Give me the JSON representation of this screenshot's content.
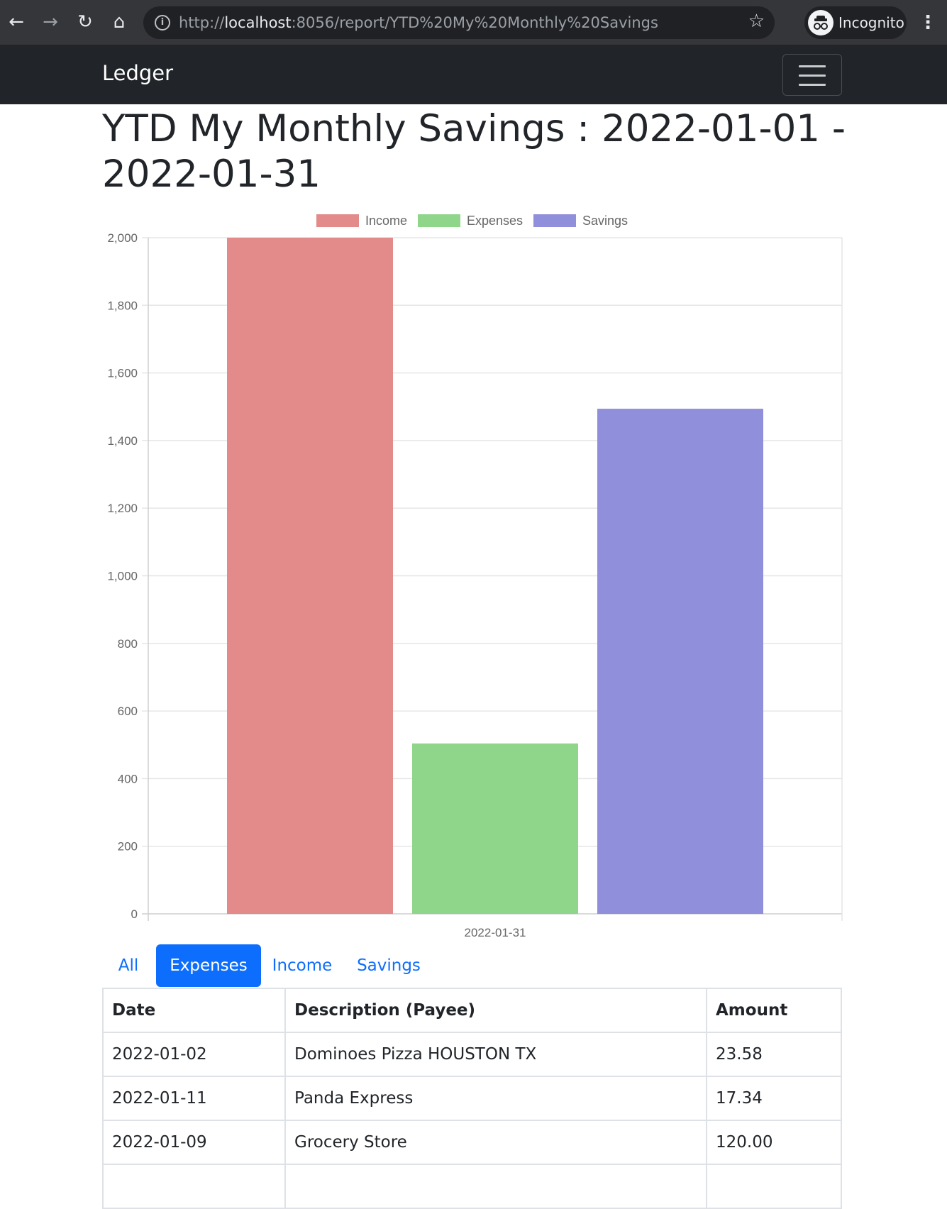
{
  "browser": {
    "url_prefix": "http://",
    "url_host": "localhost",
    "url_rest": ":8056/report/YTD%20My%20Monthly%20Savings",
    "incognito_label": "Incognito"
  },
  "navbar": {
    "brand": "Ledger"
  },
  "page": {
    "title": "YTD My Monthly Savings : 2022-01-01 - 2022-01-31"
  },
  "chart_data": {
    "type": "bar",
    "categories": [
      "2022-01-31"
    ],
    "series": [
      {
        "name": "Income",
        "values": [
          2000
        ],
        "color": "#e38a8a"
      },
      {
        "name": "Expenses",
        "values": [
          504
        ],
        "color": "#8fd68b"
      },
      {
        "name": "Savings",
        "values": [
          1494
        ],
        "color": "#8f8fdb"
      }
    ],
    "ylim": [
      0,
      2000
    ],
    "yticks": [
      "0",
      "200",
      "400",
      "600",
      "800",
      "1,000",
      "1,200",
      "1,400",
      "1,600",
      "1,800",
      "2,000"
    ],
    "grid": true,
    "legend_position": "top"
  },
  "tabs": [
    {
      "label": "All",
      "active": false
    },
    {
      "label": "Expenses",
      "active": true
    },
    {
      "label": "Income",
      "active": false
    },
    {
      "label": "Savings",
      "active": false
    }
  ],
  "table": {
    "headers": [
      "Date",
      "Description (Payee)",
      "Amount"
    ],
    "rows": [
      [
        "2022-01-02",
        "Dominoes Pizza HOUSTON TX",
        "23.58"
      ],
      [
        "2022-01-11",
        "Panda Express",
        "17.34"
      ],
      [
        "2022-01-09",
        "Grocery Store",
        "120.00"
      ]
    ]
  },
  "colors": {
    "navbar_bg": "#212529",
    "accent": "#0d6efd"
  }
}
